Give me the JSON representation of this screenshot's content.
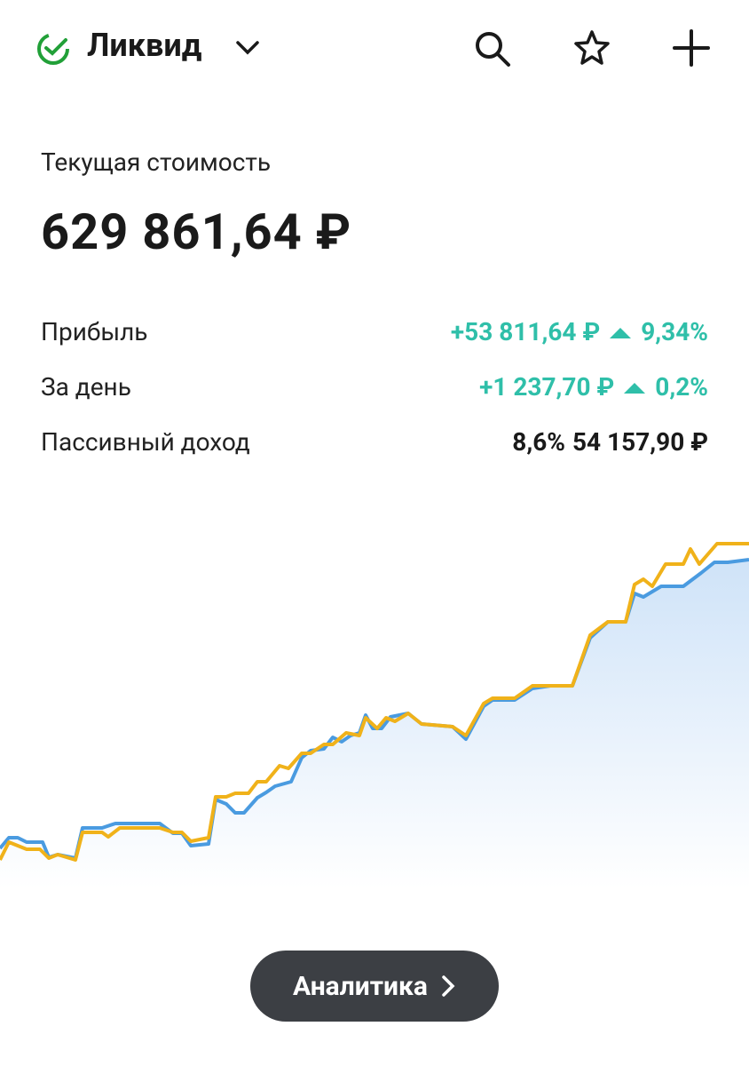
{
  "header": {
    "title": "Ликвид"
  },
  "summary": {
    "label": "Текущая стоимость",
    "value": "629 861,64 ₽"
  },
  "rows": [
    {
      "label": "Прибыль",
      "value": "+53 811,64 ₽",
      "percent": "9,34%"
    },
    {
      "label": "За день",
      "value": "+1 237,70 ₽",
      "percent": "0,2%"
    },
    {
      "label": "Пассивный доход",
      "value": "54 157,90 ₽",
      "percent": "8,6%"
    }
  ],
  "button": {
    "label": "Аналитика"
  }
}
